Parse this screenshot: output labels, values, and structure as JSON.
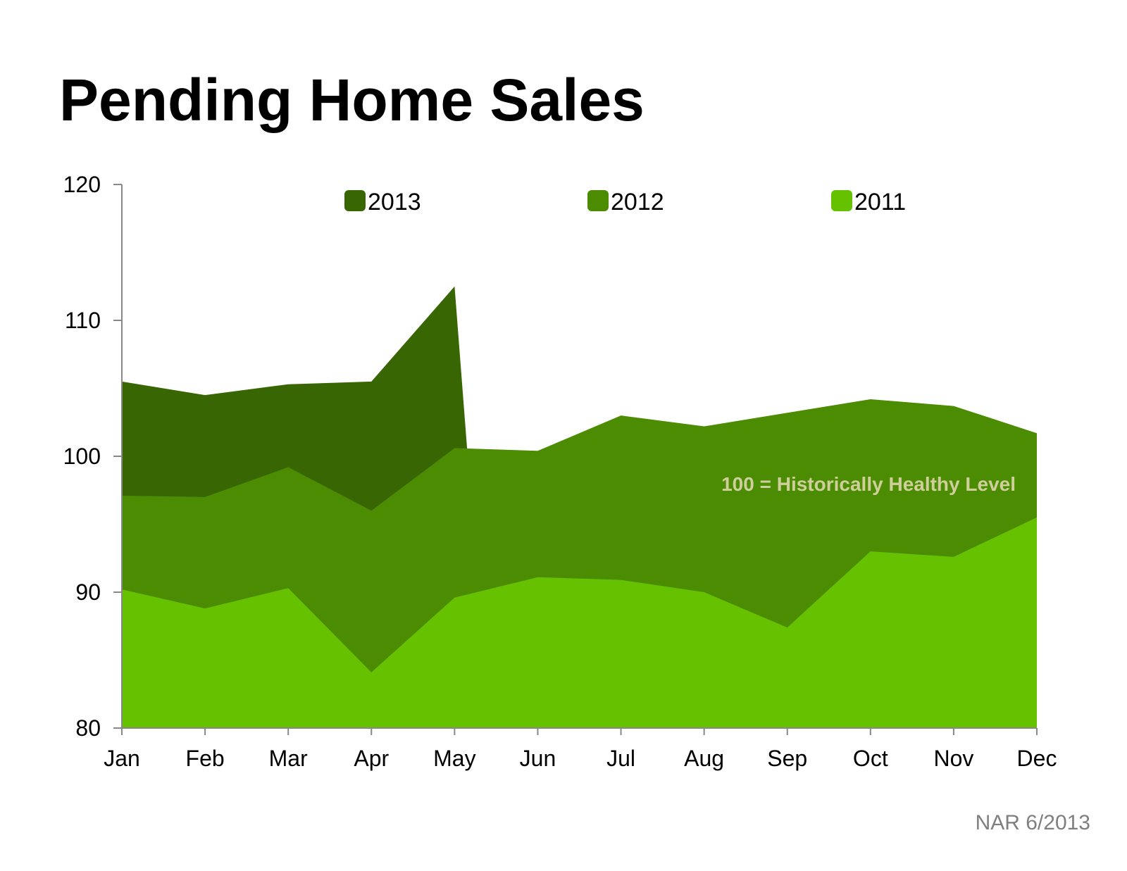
{
  "title": "Pending Home Sales",
  "source": "NAR 6/2013",
  "chart_data": {
    "type": "area",
    "title": "Pending Home Sales",
    "xlabel": "",
    "ylabel": "",
    "ylim": [
      80,
      120
    ],
    "yticks": [
      80,
      90,
      100,
      110,
      120
    ],
    "categories": [
      "Jan",
      "Feb",
      "Mar",
      "Apr",
      "May",
      "Jun",
      "Jul",
      "Aug",
      "Sep",
      "Oct",
      "Nov",
      "Dec"
    ],
    "grid": false,
    "legend_position": "top",
    "overlapping": true,
    "series": [
      {
        "name": "2013",
        "color": "#376603",
        "values": [
          105.5,
          104.5,
          105.3,
          105.5,
          112.5,
          null,
          null,
          null,
          null,
          null,
          null,
          null
        ]
      },
      {
        "name": "2012",
        "color": "#4c8c02",
        "values": [
          97.1,
          97.0,
          99.2,
          96.0,
          100.6,
          100.4,
          103.0,
          102.2,
          103.2,
          104.2,
          103.7,
          101.7
        ]
      },
      {
        "name": "2011",
        "color": "#66c200",
        "values": [
          90.2,
          88.8,
          90.3,
          84.1,
          89.6,
          91.1,
          90.9,
          90.0,
          87.4,
          93.0,
          92.6,
          95.5
        ]
      }
    ],
    "annotation": {
      "text": "100 = Historically Healthy Level",
      "color": "#cfcf9c",
      "x": "Oct",
      "y": 97.2
    }
  }
}
